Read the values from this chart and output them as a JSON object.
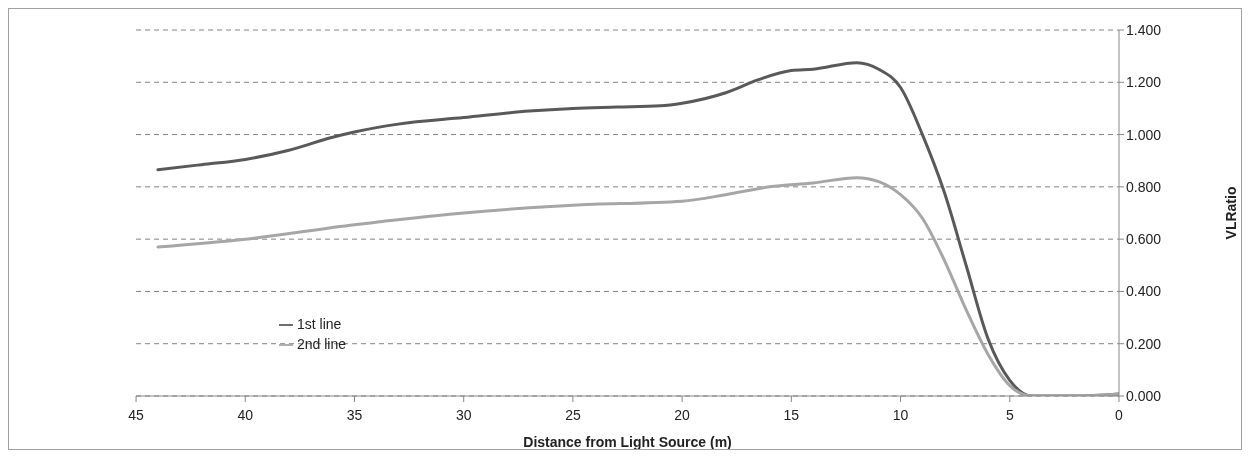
{
  "chart_data": {
    "type": "line",
    "xlabel": "Distance from Light Source (m)",
    "ylabel": "VLRatio",
    "xlim": [
      45,
      0
    ],
    "xticks": [
      45,
      40,
      35,
      30,
      25,
      20,
      15,
      10,
      5,
      0
    ],
    "ylim": [
      0,
      1.4
    ],
    "yticks": [
      {
        "value": 0,
        "label": "0.000"
      },
      {
        "value": 0.2,
        "label": "0.200"
      },
      {
        "value": 0.4,
        "label": "0.400"
      },
      {
        "value": 0.6,
        "label": "0.600"
      },
      {
        "value": 0.8,
        "label": "0.800"
      },
      {
        "value": 1.0,
        "label": "1.000"
      },
      {
        "value": 1.2,
        "label": "1.200"
      },
      {
        "value": 1.4,
        "label": "1.400"
      }
    ],
    "grid": "y",
    "legend": "bottom left",
    "marker": "none",
    "line_style": "solid",
    "series": [
      {
        "name": "1st line",
        "color": "#595959",
        "x": [
          44,
          42,
          40,
          38,
          36,
          35,
          33,
          30,
          27,
          25,
          23,
          21,
          20,
          18,
          16.5,
          15,
          14,
          12,
          11,
          10,
          9,
          8,
          7,
          6,
          5,
          4,
          2,
          0
        ],
        "values": [
          0.865,
          0.885,
          0.905,
          0.94,
          0.99,
          1.01,
          1.04,
          1.065,
          1.09,
          1.1,
          1.105,
          1.11,
          1.12,
          1.16,
          1.21,
          1.245,
          1.25,
          1.275,
          1.25,
          1.18,
          1.0,
          0.78,
          0.5,
          0.22,
          0.06,
          0,
          0,
          0.008
        ]
      },
      {
        "name": "2nd line",
        "color": "#a6a6a6",
        "x": [
          44,
          40,
          35,
          30,
          27,
          25,
          20,
          18,
          16,
          14,
          12,
          11,
          10,
          9,
          8,
          7,
          6,
          5,
          4,
          2,
          0
        ],
        "values": [
          0.57,
          0.6,
          0.655,
          0.7,
          0.72,
          0.73,
          0.745,
          0.77,
          0.8,
          0.815,
          0.835,
          0.82,
          0.77,
          0.68,
          0.52,
          0.33,
          0.16,
          0.04,
          0,
          0,
          0.008
        ]
      }
    ]
  }
}
